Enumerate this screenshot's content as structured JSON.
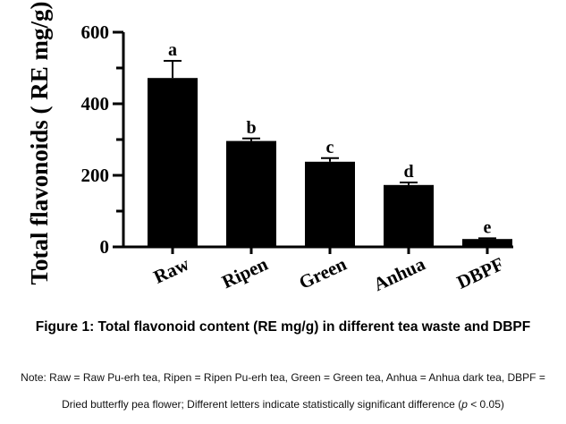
{
  "chart_data": {
    "type": "bar",
    "categories": [
      "Raw",
      "Ripen",
      "Green",
      "Anhua",
      "DBPF"
    ],
    "values": [
      472,
      296,
      238,
      173,
      22
    ],
    "errors": [
      48,
      7,
      10,
      7,
      2
    ],
    "letters": [
      "a",
      "b",
      "c",
      "d",
      "e"
    ],
    "title": "",
    "xlabel": "",
    "ylabel": "Total flavonoids ( RE mg/g)",
    "ylim": [
      0,
      600
    ],
    "yticks": [
      0,
      200,
      400,
      600
    ],
    "ytick_labels": [
      "0",
      "200",
      "400",
      "600"
    ],
    "minor_ytick_step": 100,
    "bar_color": "#000000",
    "grid": false
  },
  "caption": "Figure 1: Total flavonoid content (RE mg/g) in different tea waste and DBPF",
  "note_line1": "Note: Raw = Raw Pu-erh tea, Ripen = Ripen Pu-erh tea, Green = Green tea, Anhua = Anhua dark tea, DBPF =",
  "note_line2_before": "Dried butterfly pea flower; Different letters indicate statistically significant difference (",
  "note_p": "p",
  "note_le": " < 0.05)"
}
